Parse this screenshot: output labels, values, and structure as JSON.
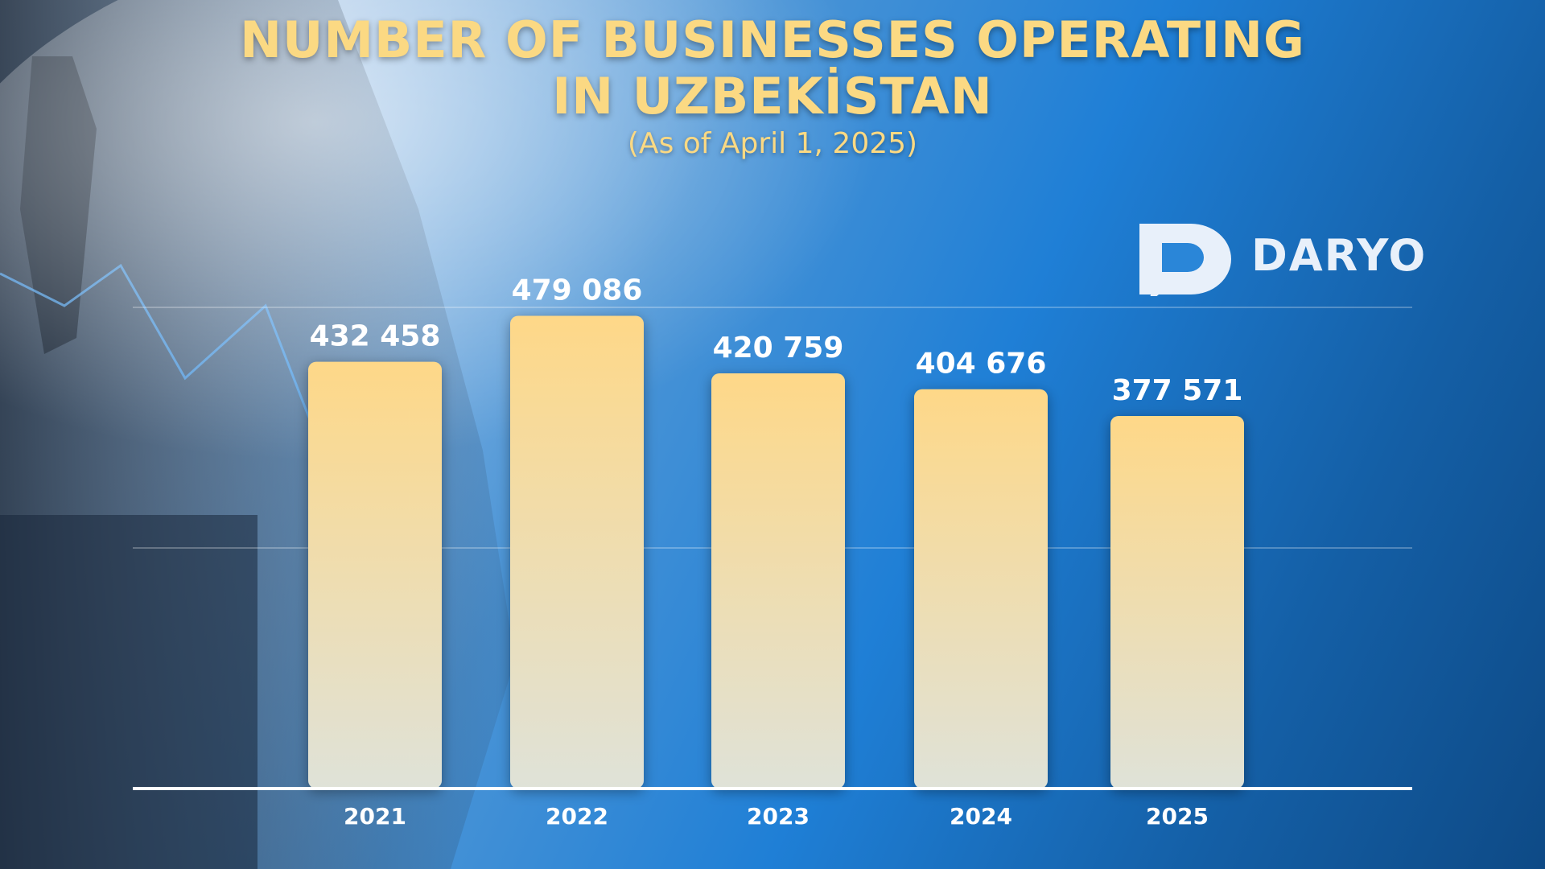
{
  "header": {
    "title_line1": "NUMBER OF BUSINESSES OPERATING",
    "title_line2": "IN UZBEKİSTAN",
    "subtitle": "(As of April 1, 2025)"
  },
  "logo": {
    "text": "DARYO",
    "icon": "speech-bubble-d-icon"
  },
  "colors": {
    "bar_top": "#fed888",
    "bar_bottom": "#dfe2d8",
    "title": "#fbd983",
    "axis": "#ffffff"
  },
  "chart_data": {
    "type": "bar",
    "categories": [
      "2021",
      "2022",
      "2023",
      "2024",
      "2025"
    ],
    "values": [
      432458,
      479086,
      420759,
      404676,
      377571
    ],
    "value_labels": [
      "432 458",
      "479 086",
      "420 759",
      "404 676",
      "377 571"
    ],
    "ylim": [
      0,
      530000
    ],
    "grid": true
  }
}
